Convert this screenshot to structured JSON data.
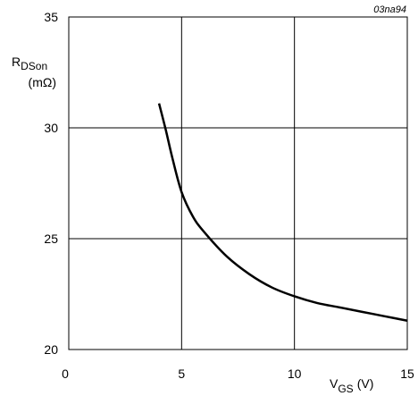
{
  "chart_data": {
    "type": "line",
    "figure_code": "03na94",
    "ylabel": {
      "main": "R",
      "sub": "DSon",
      "unit": "(mΩ)"
    },
    "xlabel": {
      "main": "V",
      "sub": "GS",
      "unit": "(V)"
    },
    "xlim": [
      0,
      15
    ],
    "ylim": [
      20,
      35
    ],
    "xticks": [
      0,
      5,
      10,
      15
    ],
    "yticks": [
      20,
      25,
      30,
      35
    ],
    "x_tick_labels": [
      "0",
      "5",
      "10",
      "15"
    ],
    "y_tick_labels": [
      "20",
      "25",
      "30",
      "35"
    ],
    "grid": true,
    "series": [
      {
        "x": [
          4.0,
          4.3,
          4.6,
          5.0,
          5.5,
          6.0,
          7.0,
          8.0,
          9.0,
          10.0,
          11.0,
          12.0,
          13.0,
          14.0,
          15.0
        ],
        "y": [
          31.1,
          29.9,
          28.6,
          27.1,
          26.0,
          25.3,
          24.2,
          23.4,
          22.8,
          22.4,
          22.1,
          21.9,
          21.7,
          21.5,
          21.3
        ]
      }
    ]
  }
}
